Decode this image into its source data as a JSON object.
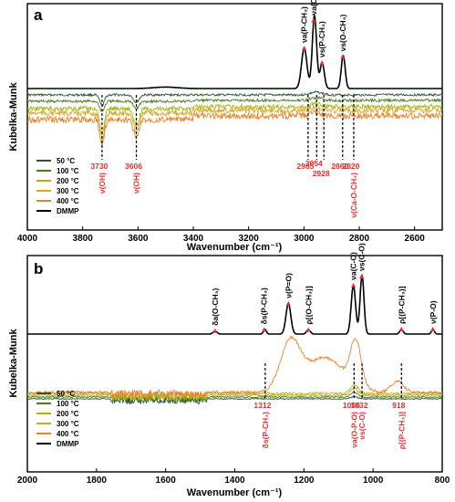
{
  "chart_data": [
    {
      "panel": "a",
      "type": "line",
      "xlabel": "Wavenumber (cm⁻¹)",
      "ylabel": "Kubelka-Munk",
      "xlim": [
        4000,
        2500
      ],
      "xticks": [
        4000,
        3800,
        3600,
        3400,
        3200,
        3000,
        2800,
        2600
      ],
      "legend": [
        "50 °C",
        "100 °C",
        "200 °C",
        "300 °C",
        "400 °C",
        "DMMP"
      ],
      "legend_colors": [
        "#2f4f2f",
        "#4a7a1e",
        "#a6b514",
        "#d4a92a",
        "#e8822a",
        "#000000"
      ],
      "peak_labels": [
        {
          "x": 2999,
          "text": "νa(P-CH₃)"
        },
        {
          "x": 2965,
          "text": "νa(O-CH₃)"
        },
        {
          "x": 2935,
          "text": "νs(P-CH₃)"
        },
        {
          "x": 2860,
          "text": "νs(O-CH₃)"
        }
      ],
      "annotations": [
        {
          "x": 3730,
          "value": "3730",
          "label": "ν(OH)"
        },
        {
          "x": 3606,
          "value": "3606",
          "label": "ν(OH)"
        },
        {
          "x": 2985,
          "value": "2985"
        },
        {
          "x": 2954,
          "value": "2954"
        },
        {
          "x": 2928,
          "value": "2928"
        },
        {
          "x": 2860,
          "value": "2860"
        },
        {
          "x": 2820,
          "value": "2820",
          "label": "ν(Ca-O-CH₃)"
        }
      ],
      "dmmp_peaks": [
        {
          "x": 2999,
          "height": 0.55,
          "width": 14
        },
        {
          "x": 2962,
          "height": 1.0,
          "width": 11
        },
        {
          "x": 2934,
          "height": 0.35,
          "width": 11
        },
        {
          "x": 2858,
          "height": 0.45,
          "width": 10
        },
        {
          "x": 3500,
          "height": 0.02,
          "width": 60
        }
      ]
    },
    {
      "panel": "b",
      "type": "line",
      "xlabel": "Wavenumber (cm⁻¹)",
      "ylabel": "Kubelka-Munk",
      "xlim": [
        2000,
        800
      ],
      "xticks": [
        2000,
        1800,
        1600,
        1400,
        1200,
        1000,
        800
      ],
      "legend": [
        "50 °C",
        "100 °C",
        "200 °C",
        "300 °C",
        "400 °C",
        "DMMP"
      ],
      "legend_colors": [
        "#2f4f2f",
        "#4a7a1e",
        "#a6b514",
        "#d4a92a",
        "#e8822a",
        "#000000"
      ],
      "peak_labels": [
        {
          "x": 1457,
          "text": "δa(O-CH₃)"
        },
        {
          "x": 1315,
          "text": "δs(P-CH₃)"
        },
        {
          "x": 1245,
          "text": "ν(P=O)"
        },
        {
          "x": 1187,
          "text": "ρ[(O-CH₃)]"
        },
        {
          "x": 1057,
          "text": "νa(C-O)"
        },
        {
          "x": 1033,
          "text": "νs(C-O)"
        },
        {
          "x": 918,
          "text": "ρ[(P-CH₃)]"
        },
        {
          "x": 827,
          "text": "ν(P-O)"
        }
      ],
      "annotations": [
        {
          "x": 1312,
          "value": "1312",
          "label": "δs(P-CH₃)"
        },
        {
          "x": 1055,
          "value": "1055",
          "label": "νa(O-P-O)"
        },
        {
          "x": 1032,
          "value": "1032",
          "label": "νs(C-O)"
        },
        {
          "x": 918,
          "value": "918",
          "label": "ρ[(P-CH₃)]"
        }
      ],
      "dmmp_peaks": [
        {
          "x": 1457,
          "height": 0.05,
          "width": 8
        },
        {
          "x": 1313,
          "height": 0.08,
          "width": 6
        },
        {
          "x": 1245,
          "height": 0.52,
          "width": 10
        },
        {
          "x": 1187,
          "height": 0.07,
          "width": 8
        },
        {
          "x": 1057,
          "height": 0.83,
          "width": 9
        },
        {
          "x": 1032,
          "height": 1.0,
          "width": 8
        },
        {
          "x": 918,
          "height": 0.08,
          "width": 7
        },
        {
          "x": 827,
          "height": 0.08,
          "width": 6
        }
      ]
    }
  ]
}
